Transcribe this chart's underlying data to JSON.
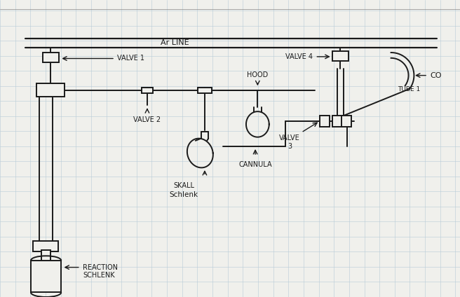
{
  "bg_color": "#f0f0ec",
  "line_color": "#1a1a1a",
  "text_color": "#1a1a1a",
  "grid_color": "#b8ccd8",
  "labels": {
    "ar_line": "Ar LINE",
    "valve1": "VALVE 1",
    "valve2": "VALVE 2",
    "valve3": "VALVE",
    "valve3b": "3",
    "valve4": "VALVE 4",
    "hood": "HOOD",
    "co": "CO",
    "tube1": "TUBE 1",
    "cannula": "CANNULA",
    "reaction_schlenk1": "REACTION",
    "reaction_schlenk2": "SCHLENK",
    "skall_schlenk1": "SKALL",
    "skall_schlenk2": "Schlenk"
  },
  "figsize": [
    6.56,
    4.24
  ],
  "dpi": 100
}
